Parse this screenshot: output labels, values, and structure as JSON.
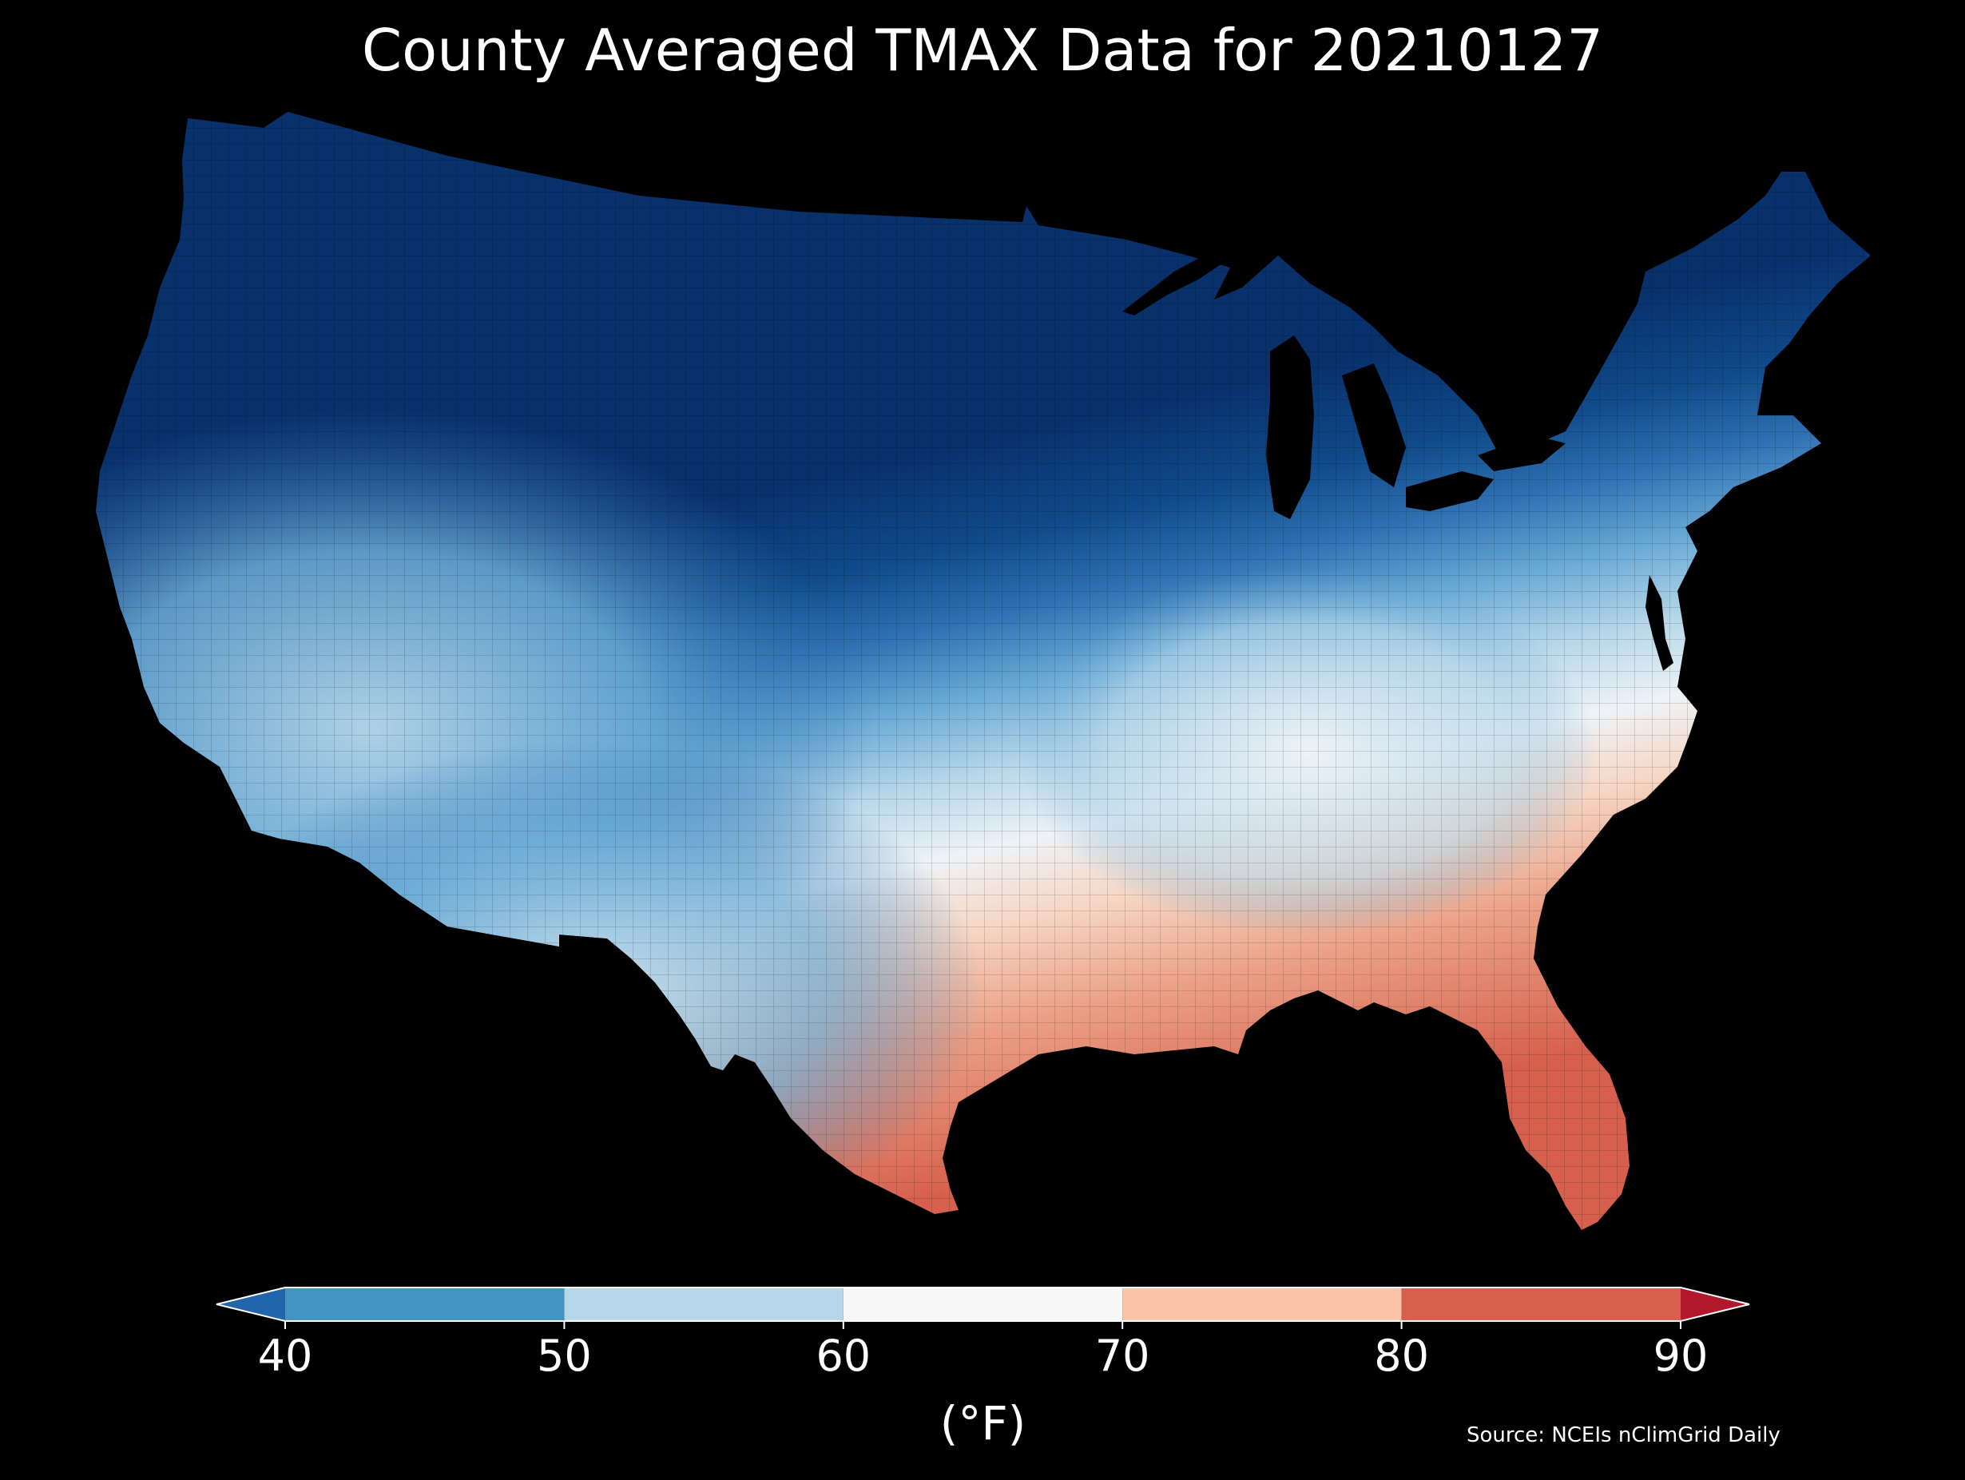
{
  "title": "County Averaged TMAX Data for 20210127",
  "colorbar": {
    "label": "(°F)",
    "ticks": [
      "40",
      "50",
      "60",
      "70",
      "80",
      "90"
    ],
    "bins": [
      {
        "range": [
          40,
          50
        ],
        "color": "#4393c3"
      },
      {
        "range": [
          50,
          60
        ],
        "color": "#b6d7e9"
      },
      {
        "range": [
          60,
          70
        ],
        "color": "#f7f7f7"
      },
      {
        "range": [
          70,
          80
        ],
        "color": "#f9c4a9"
      },
      {
        "range": [
          80,
          90
        ],
        "color": "#d6604d"
      }
    ],
    "under_color": "#2166ac",
    "over_color": "#b2182b"
  },
  "source": "Source: NCEIs nClimGrid Daily",
  "map": {
    "region": "Contiguous United States, county level",
    "background": "#000000",
    "palette": {
      "very_cold": "#08306b",
      "cold": "#0f4a8a",
      "cool": "#2f71b3",
      "mild_blue": "#6aabd6",
      "light_blue": "#b6d7e9",
      "near_white": "#eef3f7",
      "light_orange": "#f6d7c5",
      "orange": "#eba085",
      "red": "#d6604d"
    }
  }
}
